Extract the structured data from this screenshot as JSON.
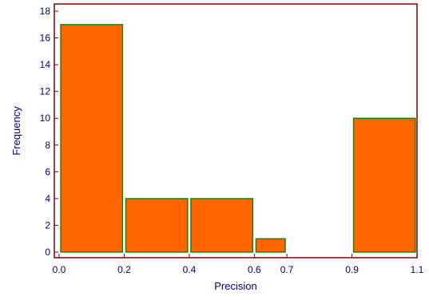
{
  "chart_data": {
    "type": "bar",
    "xlabel": "Precision",
    "ylabel": "Frequency",
    "xlim": [
      0.0,
      1.1
    ],
    "ylim": [
      0,
      18
    ],
    "x_ticks": [
      "0.0",
      "0.2",
      "0.4",
      "0.6",
      "0.7",
      "0.9",
      "1.1"
    ],
    "x_tick_values": [
      0.0,
      0.2,
      0.4,
      0.6,
      0.7,
      0.9,
      1.1
    ],
    "y_ticks": [
      "0",
      "2",
      "4",
      "6",
      "8",
      "10",
      "12",
      "14",
      "16",
      "18"
    ],
    "y_tick_values": [
      0,
      2,
      4,
      6,
      8,
      10,
      12,
      14,
      16,
      18
    ],
    "bins": [
      {
        "x_start": 0.0,
        "x_end": 0.2,
        "value": 17
      },
      {
        "x_start": 0.2,
        "x_end": 0.4,
        "value": 4
      },
      {
        "x_start": 0.4,
        "x_end": 0.6,
        "value": 4
      },
      {
        "x_start": 0.6,
        "x_end": 0.7,
        "value": 1
      },
      {
        "x_start": 0.9,
        "x_end": 1.1,
        "value": 10
      }
    ],
    "grid": false,
    "legend": "none"
  },
  "colors": {
    "bar_fill": "#ff6600",
    "bar_edge": "#008000",
    "frame": "#800000",
    "tick_label": "#000080",
    "axis_title": "#000080"
  }
}
